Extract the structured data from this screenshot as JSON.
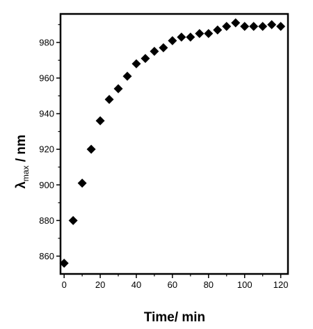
{
  "chart_data": {
    "type": "scatter",
    "xlabel": "Time/ min",
    "ylabel": {
      "symbol": "λ",
      "subscript": "max",
      "unit": " / nm"
    },
    "xlim": [
      -2,
      124
    ],
    "ylim": [
      850,
      996
    ],
    "xticks": [
      0,
      20,
      40,
      60,
      80,
      100,
      120
    ],
    "yticks": [
      860,
      880,
      900,
      920,
      940,
      960,
      980
    ],
    "xminor": [
      10,
      30,
      50,
      70,
      90,
      110
    ],
    "yminor": [
      870,
      890,
      910,
      930,
      950,
      970,
      990
    ],
    "marker": "diamond",
    "marker_color": "#000000",
    "grid": false,
    "series": [
      {
        "points": [
          {
            "x": 0,
            "y": 856
          },
          {
            "x": 5,
            "y": 880
          },
          {
            "x": 10,
            "y": 901
          },
          {
            "x": 15,
            "y": 920
          },
          {
            "x": 20,
            "y": 936
          },
          {
            "x": 25,
            "y": 948
          },
          {
            "x": 30,
            "y": 954
          },
          {
            "x": 35,
            "y": 961
          },
          {
            "x": 40,
            "y": 968
          },
          {
            "x": 45,
            "y": 971
          },
          {
            "x": 50,
            "y": 975
          },
          {
            "x": 55,
            "y": 977
          },
          {
            "x": 60,
            "y": 981
          },
          {
            "x": 65,
            "y": 983
          },
          {
            "x": 70,
            "y": 983
          },
          {
            "x": 75,
            "y": 985
          },
          {
            "x": 80,
            "y": 985
          },
          {
            "x": 85,
            "y": 987
          },
          {
            "x": 90,
            "y": 989
          },
          {
            "x": 95,
            "y": 991
          },
          {
            "x": 100,
            "y": 989
          },
          {
            "x": 105,
            "y": 989
          },
          {
            "x": 110,
            "y": 989
          },
          {
            "x": 115,
            "y": 990
          },
          {
            "x": 120,
            "y": 989
          }
        ]
      }
    ]
  }
}
